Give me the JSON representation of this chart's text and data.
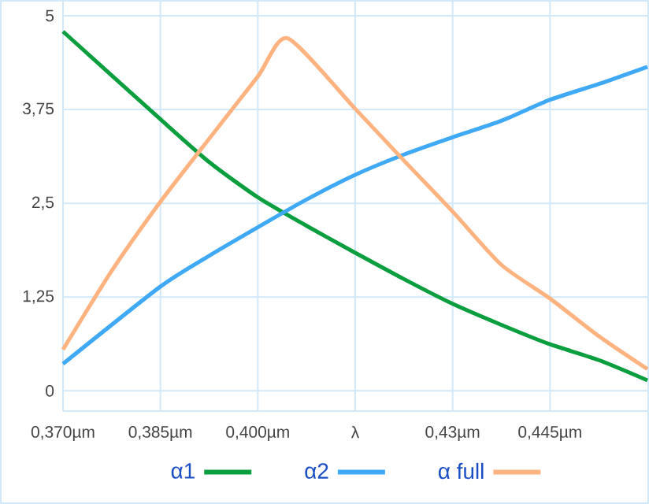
{
  "chart_data": {
    "type": "line",
    "xlim": [
      0.37,
      0.46
    ],
    "ylim": [
      -0.27,
      5.21
    ],
    "xticks": [
      {
        "value": 0.37,
        "label": "0,370µm"
      },
      {
        "value": 0.385,
        "label": "0,385µm"
      },
      {
        "value": 0.4,
        "label": "0,400µm"
      },
      {
        "value": 0.415,
        "label": "λ"
      },
      {
        "value": 0.43,
        "label": "0,43µm"
      },
      {
        "value": 0.445,
        "label": "0,445µm"
      }
    ],
    "yticks": [
      0,
      {
        "value": 1.25,
        "label": "1,25"
      },
      {
        "value": 2.5,
        "label": "2,5"
      },
      {
        "value": 3.75,
        "label": "3,75"
      },
      5
    ],
    "grid": true,
    "legend": "bottom",
    "series": [
      {
        "name": "α1",
        "color": "#0a9e3e",
        "x": [
          0.37,
          0.385,
          0.3925,
          0.4,
          0.4075,
          0.415,
          0.4225,
          0.43,
          0.4375,
          0.445,
          0.4525,
          0.46
        ],
        "values": [
          4.79,
          3.62,
          3.05,
          2.58,
          2.2,
          1.84,
          1.49,
          1.16,
          0.88,
          0.62,
          0.41,
          0.14
        ]
      },
      {
        "name": "α2",
        "color": "#3fa9f5",
        "x": [
          0.37,
          0.385,
          0.3925,
          0.4,
          0.4075,
          0.415,
          0.4225,
          0.43,
          0.4375,
          0.445,
          0.4525,
          0.46
        ],
        "values": [
          0.36,
          1.39,
          1.8,
          2.18,
          2.55,
          2.88,
          3.15,
          3.38,
          3.6,
          3.88,
          4.09,
          4.32
        ]
      },
      {
        "name": "α full",
        "color": "#ffb380",
        "x": [
          0.37,
          0.3775,
          0.385,
          0.3925,
          0.4,
          0.4046,
          0.415,
          0.4225,
          0.43,
          0.4375,
          0.445,
          0.4525,
          0.46
        ],
        "values": [
          0.55,
          1.6,
          2.52,
          3.36,
          4.19,
          4.7,
          3.76,
          3.07,
          2.39,
          1.68,
          1.23,
          0.73,
          0.29
        ]
      }
    ]
  }
}
